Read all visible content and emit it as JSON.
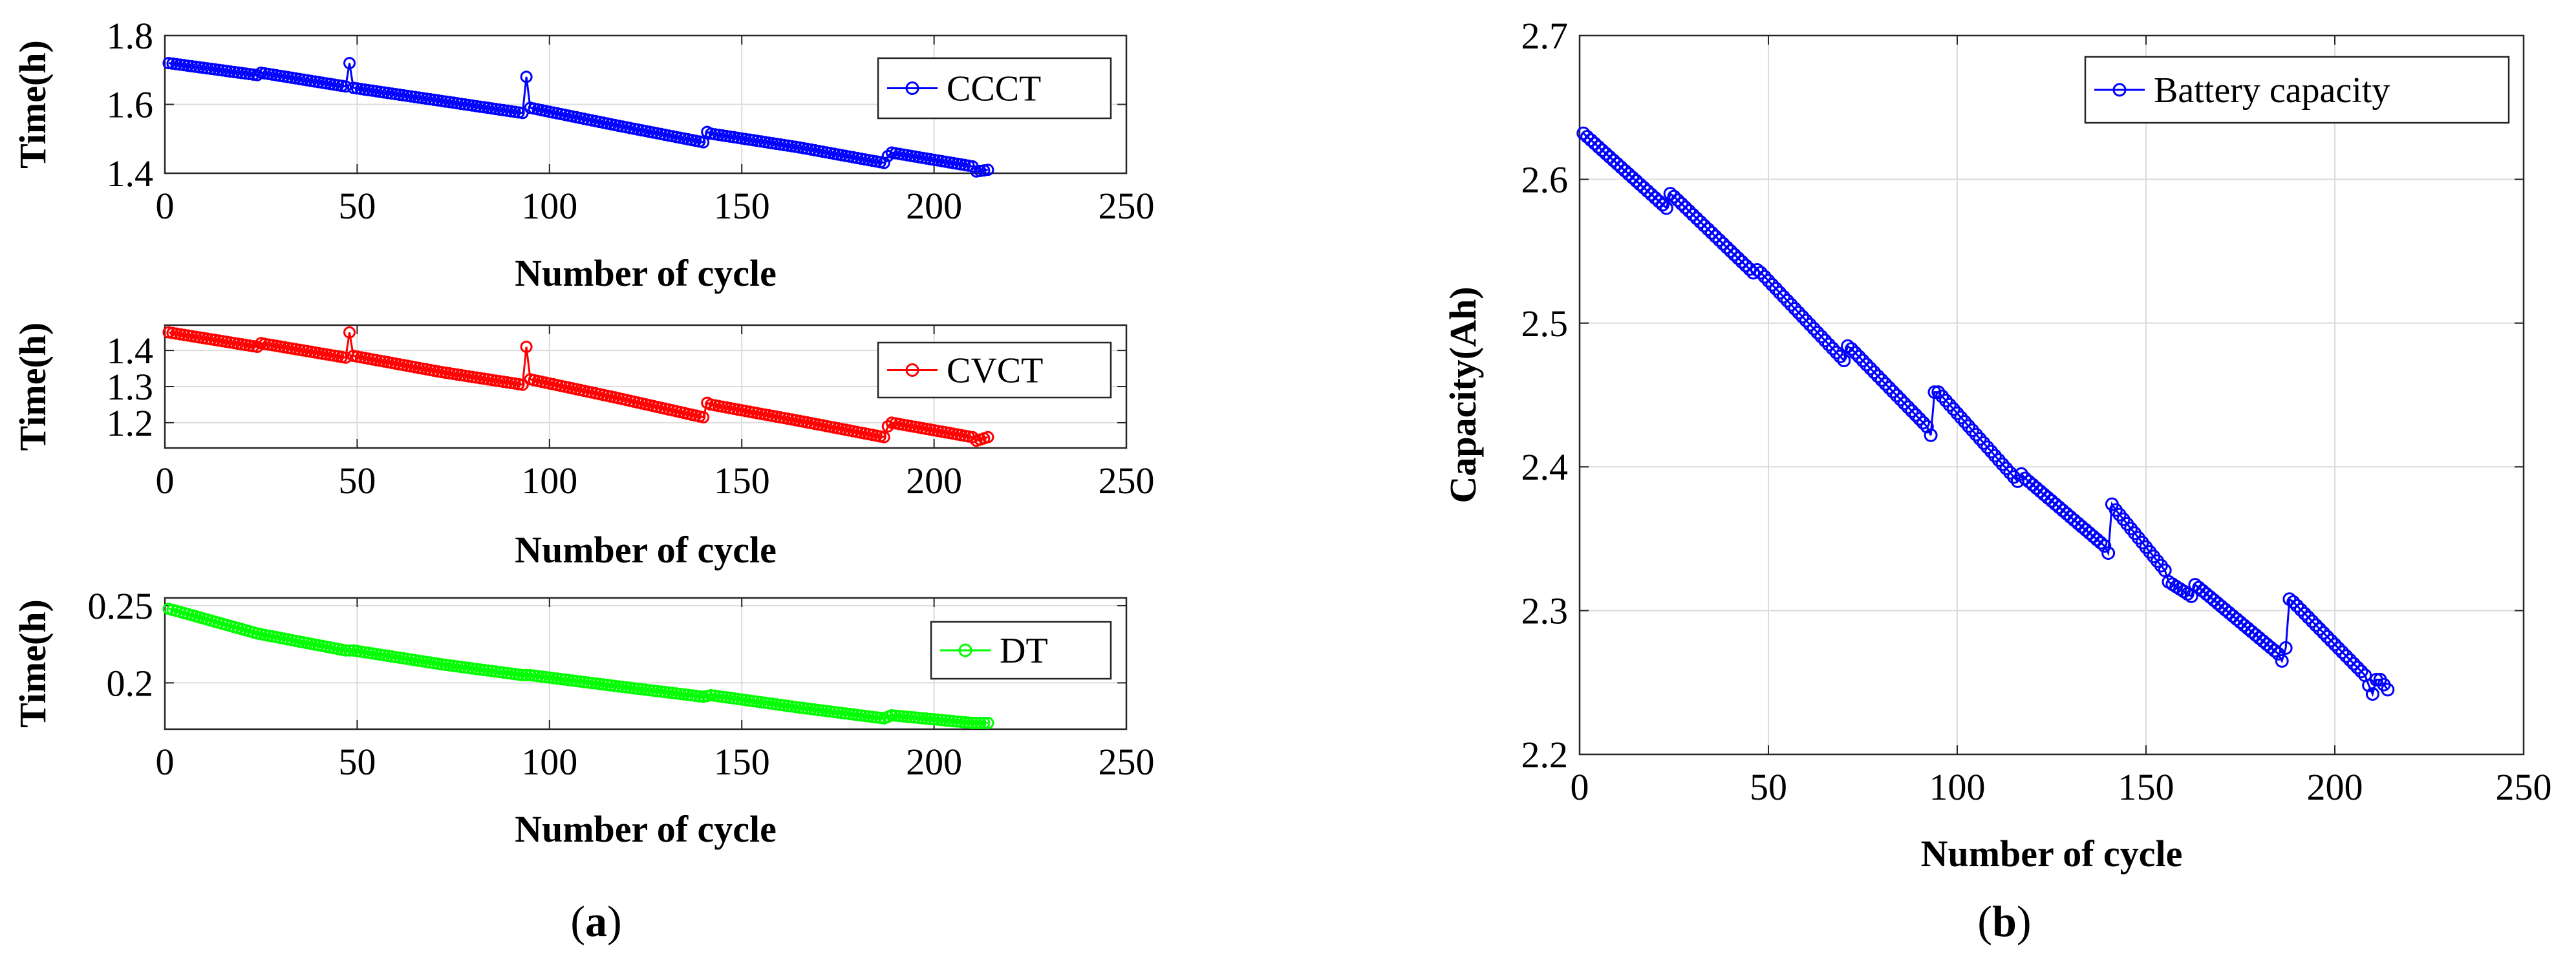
{
  "chart_data": [
    {
      "type": "line",
      "panel": "a",
      "title": "",
      "xlabel": "Number of cycle",
      "ylabel": "Time(h)",
      "xlim": [
        0,
        250
      ],
      "ylim": [
        1.4,
        1.8
      ],
      "xticks": [
        0,
        50,
        100,
        150,
        200,
        250
      ],
      "yticks": [
        1.4,
        1.6,
        1.8
      ],
      "grid": true,
      "legend": "top-right",
      "marker": "circle",
      "series": [
        {
          "name": "CCCT",
          "color": "#0000ff",
          "x": [
            1,
            24,
            25,
            47,
            48,
            49,
            72,
            93,
            94,
            95,
            117,
            140,
            141,
            142,
            165,
            187,
            188,
            189,
            210,
            211,
            214
          ],
          "y": [
            1.72,
            1.685,
            1.692,
            1.652,
            1.72,
            1.648,
            1.61,
            1.575,
            1.68,
            1.59,
            1.54,
            1.49,
            1.52,
            1.515,
            1.475,
            1.43,
            1.45,
            1.46,
            1.42,
            1.405,
            1.41
          ]
        }
      ]
    },
    {
      "type": "line",
      "panel": "a",
      "title": "",
      "xlabel": "Number of cycle",
      "ylabel": "Time(h)",
      "xlim": [
        0,
        250
      ],
      "ylim": [
        1.13,
        1.47
      ],
      "xticks": [
        0,
        50,
        100,
        150,
        200,
        250
      ],
      "yticks": [
        1.2,
        1.3,
        1.4
      ],
      "grid": true,
      "legend": "top-right",
      "marker": "circle",
      "series": [
        {
          "name": "CVCT",
          "color": "#ff0000",
          "x": [
            1,
            24,
            25,
            47,
            48,
            49,
            72,
            93,
            94,
            95,
            117,
            140,
            141,
            142,
            165,
            187,
            188,
            189,
            210,
            211,
            214
          ],
          "y": [
            1.45,
            1.41,
            1.42,
            1.38,
            1.45,
            1.385,
            1.34,
            1.305,
            1.41,
            1.32,
            1.27,
            1.215,
            1.255,
            1.25,
            1.205,
            1.16,
            1.19,
            1.2,
            1.16,
            1.15,
            1.16
          ]
        }
      ]
    },
    {
      "type": "line",
      "panel": "a",
      "title": "",
      "xlabel": "Number of cycle",
      "ylabel": "Time(h)",
      "xlim": [
        0,
        250
      ],
      "ylim": [
        0.17,
        0.255
      ],
      "xticks": [
        0,
        50,
        100,
        150,
        200,
        250
      ],
      "yticks": [
        0.2,
        0.25
      ],
      "grid": true,
      "legend": "top-right",
      "marker": "circle",
      "series": [
        {
          "name": "DT",
          "color": "#00ff00",
          "x": [
            1,
            24,
            47,
            49,
            72,
            93,
            95,
            117,
            140,
            142,
            165,
            187,
            189,
            210,
            214
          ],
          "y": [
            0.248,
            0.232,
            0.221,
            0.221,
            0.212,
            0.205,
            0.205,
            0.198,
            0.191,
            0.192,
            0.184,
            0.177,
            0.179,
            0.174,
            0.174
          ]
        }
      ]
    },
    {
      "type": "line",
      "panel": "b",
      "title": "",
      "xlabel": "Number of cycle",
      "ylabel": "Capacity(Ah)",
      "xlim": [
        0,
        250
      ],
      "ylim": [
        2.2,
        2.7
      ],
      "xticks": [
        0,
        50,
        100,
        150,
        200,
        250
      ],
      "yticks": [
        2.2,
        2.3,
        2.4,
        2.5,
        2.6,
        2.7
      ],
      "grid": true,
      "legend": "top-right",
      "marker": "circle",
      "series": [
        {
          "name": "Battery capacity",
          "color": "#0000ff",
          "x": [
            1,
            23,
            24,
            25,
            46,
            47,
            48,
            70,
            71,
            72,
            92,
            93,
            94,
            95,
            116,
            117,
            118,
            139,
            140,
            141,
            142,
            155,
            156,
            162,
            163,
            164,
            185,
            186,
            187,
            188,
            189,
            208,
            209,
            210,
            211,
            212,
            214
          ],
          "y": [
            2.632,
            2.58,
            2.59,
            2.588,
            2.535,
            2.537,
            2.535,
            2.474,
            2.484,
            2.482,
            2.428,
            2.422,
            2.452,
            2.452,
            2.39,
            2.395,
            2.392,
            2.345,
            2.34,
            2.374,
            2.37,
            2.328,
            2.32,
            2.31,
            2.318,
            2.316,
            2.27,
            2.265,
            2.274,
            2.308,
            2.306,
            2.255,
            2.248,
            2.242,
            2.252,
            2.252,
            2.245
          ]
        }
      ]
    }
  ],
  "captions": {
    "a": "a",
    "b": "b"
  }
}
